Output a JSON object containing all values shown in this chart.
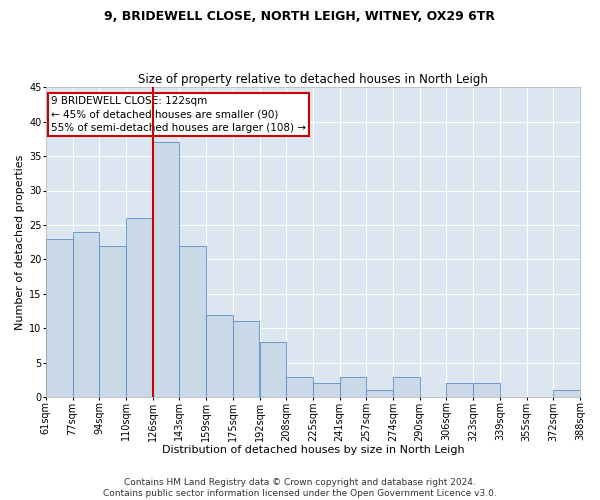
{
  "title": "9, BRIDEWELL CLOSE, NORTH LEIGH, WITNEY, OX29 6TR",
  "subtitle": "Size of property relative to detached houses in North Leigh",
  "xlabel": "Distribution of detached houses by size in North Leigh",
  "ylabel": "Number of detached properties",
  "bar_values": [
    23,
    24,
    22,
    26,
    37,
    22,
    12,
    11,
    8,
    3,
    2,
    3,
    1,
    3,
    0,
    2,
    2,
    0,
    0,
    1
  ],
  "bar_labels": [
    "61sqm",
    "77sqm",
    "94sqm",
    "110sqm",
    "126sqm",
    "143sqm",
    "159sqm",
    "175sqm",
    "192sqm",
    "208sqm",
    "225sqm",
    "241sqm",
    "257sqm",
    "274sqm",
    "290sqm",
    "306sqm",
    "323sqm",
    "339sqm",
    "355sqm",
    "372sqm",
    "388sqm"
  ],
  "bar_color": "#c9d9e8",
  "bar_edge_color": "#5b8fc9",
  "vertical_line_color": "#cc0000",
  "annotation_text": "9 BRIDEWELL CLOSE: 122sqm\n← 45% of detached houses are smaller (90)\n55% of semi-detached houses are larger (108) →",
  "annotation_box_color": "#ffffff",
  "annotation_box_edge_color": "#cc0000",
  "ylim": [
    0,
    45
  ],
  "yticks": [
    0,
    5,
    10,
    15,
    20,
    25,
    30,
    35,
    40,
    45
  ],
  "footer_text": "Contains HM Land Registry data © Crown copyright and database right 2024.\nContains public sector information licensed under the Open Government Licence v3.0.",
  "plot_bg_color": "#dce6f1",
  "title_fontsize": 9,
  "subtitle_fontsize": 8.5,
  "axis_label_fontsize": 8,
  "tick_fontsize": 7,
  "annotation_fontsize": 7.5,
  "footer_fontsize": 6.5
}
